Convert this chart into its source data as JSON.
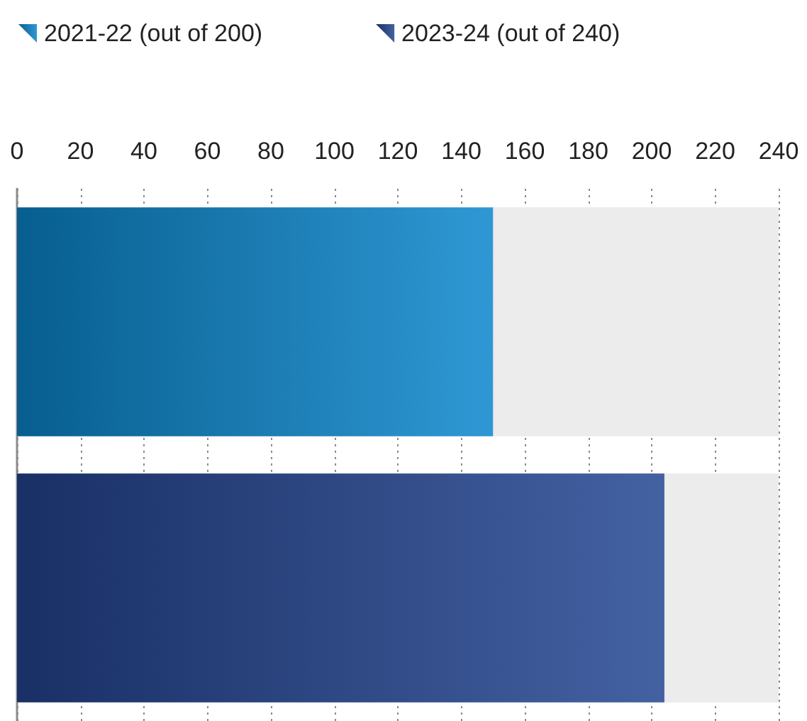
{
  "chart_data": {
    "type": "bar",
    "orientation": "horizontal",
    "categories": [
      null,
      null
    ],
    "series": [
      {
        "name": "2021-22 (out of 200)",
        "color": "#0a86cc",
        "values": [
          150,
          null
        ]
      },
      {
        "name": "2023-24 (out of 240)",
        "color": "#234592",
        "values": [
          null,
          204
        ]
      }
    ],
    "xlim": [
      0,
      240
    ],
    "xticks": [
      0,
      20,
      40,
      60,
      80,
      100,
      120,
      140,
      160,
      180,
      200,
      220,
      240
    ],
    "grid": "x",
    "legend": "top left",
    "tick_labels": "x"
  }
}
